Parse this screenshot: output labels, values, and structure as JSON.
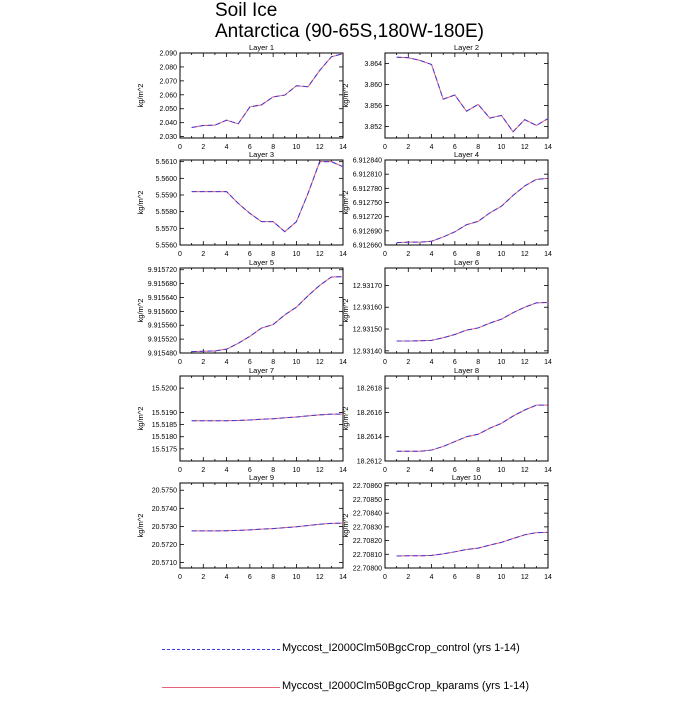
{
  "title": "Soil Ice",
  "subtitle": "Antarctica (90-65S,180W-180E)",
  "legend": [
    {
      "label": "Myccost_I2000Clm50BgcCrop_control (yrs 1-14)",
      "color": "#3a3ad9",
      "style": "dashed"
    },
    {
      "label": "Myccost_I2000Clm50BgcCrop_kparams (yrs 1-14)",
      "color": "#e8607a",
      "style": "solid"
    }
  ],
  "chart_data": [
    {
      "type": "line",
      "title": "Layer 1",
      "ylabel": "kg/m^2",
      "xlim": [
        0,
        14
      ],
      "ylim": [
        2.029,
        2.09
      ],
      "xticks": [
        "0",
        "2",
        "4",
        "6",
        "8",
        "10",
        "12",
        "14"
      ],
      "yticks": [
        "2.030",
        "2.040",
        "2.050",
        "2.060",
        "2.070",
        "2.080",
        "2.090"
      ],
      "x": [
        1,
        2,
        3,
        4,
        5,
        6,
        7,
        8,
        9,
        10,
        11,
        12,
        13,
        14
      ],
      "series": [
        {
          "name": "Myccost_I2000Clm50BgcCrop_control (yrs 1-14)",
          "values": [
            2.0365,
            2.038,
            2.0382,
            2.0418,
            2.0392,
            2.0513,
            2.0528,
            2.0585,
            2.0598,
            2.0665,
            2.0658,
            2.0775,
            2.0873,
            2.0895
          ]
        },
        {
          "name": "Myccost_I2000Clm50BgcCrop_kparams (yrs 1-14)",
          "values": [
            2.0365,
            2.038,
            2.0382,
            2.0418,
            2.0392,
            2.0513,
            2.0528,
            2.0585,
            2.0598,
            2.0665,
            2.0658,
            2.0775,
            2.0873,
            2.0895
          ]
        }
      ]
    },
    {
      "type": "line",
      "title": "Layer 2",
      "ylabel": "kg/m^2",
      "xlim": [
        0,
        14
      ],
      "ylim": [
        3.8498,
        3.866
      ],
      "xticks": [
        "0",
        "2",
        "4",
        "6",
        "8",
        "10",
        "12",
        "14"
      ],
      "yticks": [
        "3.852",
        "3.856",
        "3.860",
        "3.864"
      ],
      "x": [
        1,
        2,
        3,
        4,
        5,
        6,
        7,
        8,
        9,
        10,
        11,
        12,
        13,
        14
      ],
      "series": [
        {
          "name": "Myccost_I2000Clm50BgcCrop_control (yrs 1-14)",
          "values": [
            3.8652,
            3.8651,
            3.8646,
            3.8638,
            3.8572,
            3.858,
            3.8549,
            3.8562,
            3.8536,
            3.8541,
            3.851,
            3.8533,
            3.8522,
            3.8535
          ]
        },
        {
          "name": "Myccost_I2000Clm50BgcCrop_kparams (yrs 1-14)",
          "values": [
            3.8652,
            3.8651,
            3.8646,
            3.8638,
            3.8572,
            3.858,
            3.8549,
            3.8562,
            3.8536,
            3.8541,
            3.851,
            3.8533,
            3.8522,
            3.8535
          ]
        }
      ]
    },
    {
      "type": "line",
      "title": "Layer 3",
      "ylabel": "kg/m^2",
      "xlim": [
        0,
        14
      ],
      "ylim": [
        5.556,
        5.5611
      ],
      "xticks": [
        "0",
        "2",
        "4",
        "6",
        "8",
        "10",
        "12",
        "14"
      ],
      "yticks": [
        "5.5560",
        "5.5570",
        "5.5580",
        "5.5590",
        "5.5600",
        "5.5610"
      ],
      "x": [
        1,
        2,
        3,
        4,
        5,
        6,
        7,
        8,
        9,
        10,
        11,
        12,
        13,
        14
      ],
      "series": [
        {
          "name": "Myccost_I2000Clm50BgcCrop_control (yrs 1-14)",
          "values": [
            5.5592,
            5.5592,
            5.5592,
            5.5592,
            5.5585,
            5.5579,
            5.5574,
            5.5574,
            5.5568,
            5.5574,
            5.5591,
            5.561,
            5.561,
            5.5607
          ]
        },
        {
          "name": "Myccost_I2000Clm50BgcCrop_kparams (yrs 1-14)",
          "values": [
            5.5592,
            5.5592,
            5.5592,
            5.5592,
            5.5585,
            5.5579,
            5.5574,
            5.5574,
            5.5568,
            5.5574,
            5.5591,
            5.561,
            5.561,
            5.5607
          ]
        }
      ]
    },
    {
      "type": "line",
      "title": "Layer 4",
      "ylabel": "kg/m^2",
      "xlim": [
        0,
        14
      ],
      "ylim": [
        6.91266,
        6.91284
      ],
      "xticks": [
        "0",
        "2",
        "4",
        "6",
        "8",
        "10",
        "12",
        "14"
      ],
      "yticks": [
        "6.912660",
        "6.912690",
        "6.912720",
        "6.912750",
        "6.912780",
        "6.912810",
        "6.912840"
      ],
      "x": [
        1,
        2,
        3,
        4,
        5,
        6,
        7,
        8,
        9,
        10,
        11,
        12,
        13,
        14
      ],
      "series": [
        {
          "name": "Myccost_I2000Clm50BgcCrop_control (yrs 1-14)",
          "values": [
            6.912665,
            6.912666,
            6.912666,
            6.912668,
            6.912677,
            6.912688,
            6.912703,
            6.91271,
            6.912728,
            6.912742,
            6.912765,
            6.912785,
            6.912799,
            6.912801
          ]
        },
        {
          "name": "Myccost_I2000Clm50BgcCrop_kparams (yrs 1-14)",
          "values": [
            6.912665,
            6.912666,
            6.912666,
            6.912668,
            6.912677,
            6.912688,
            6.912703,
            6.91271,
            6.912728,
            6.912742,
            6.912765,
            6.912785,
            6.912799,
            6.912801
          ]
        }
      ]
    },
    {
      "type": "line",
      "title": "Layer 5",
      "ylabel": "kg/m^2",
      "xlim": [
        0,
        14
      ],
      "ylim": [
        9.91548,
        9.915725
      ],
      "xticks": [
        "0",
        "2",
        "4",
        "6",
        "8",
        "10",
        "12",
        "14"
      ],
      "yticks": [
        "9.915480",
        "9.915520",
        "9.915560",
        "9.915600",
        "9.915640",
        "9.915680",
        "9.915720"
      ],
      "x": [
        1,
        2,
        3,
        4,
        5,
        6,
        7,
        8,
        9,
        10,
        11,
        12,
        13,
        14
      ],
      "series": [
        {
          "name": "Myccost_I2000Clm50BgcCrop_control (yrs 1-14)",
          "values": [
            9.915484,
            9.915485,
            9.915486,
            9.915491,
            9.915508,
            9.915528,
            9.915552,
            9.915562,
            9.91559,
            9.915612,
            9.915645,
            9.915675,
            9.915699,
            9.9157
          ]
        },
        {
          "name": "Myccost_I2000Clm50BgcCrop_kparams (yrs 1-14)",
          "values": [
            9.915484,
            9.915485,
            9.915486,
            9.915491,
            9.915508,
            9.915528,
            9.915552,
            9.915562,
            9.91559,
            9.915612,
            9.915645,
            9.915675,
            9.915699,
            9.9157
          ]
        }
      ]
    },
    {
      "type": "line",
      "title": "Layer 6",
      "ylabel": "kg/m^2",
      "xlim": [
        0,
        14
      ],
      "ylim": [
        12.93139,
        12.93178
      ],
      "xticks": [
        "0",
        "2",
        "4",
        "6",
        "8",
        "10",
        "12",
        "14"
      ],
      "yticks": [
        "12.93140",
        "12.93150",
        "12.93160",
        "12.93170"
      ],
      "x": [
        1,
        2,
        3,
        4,
        5,
        6,
        7,
        8,
        9,
        10,
        11,
        12,
        13,
        14
      ],
      "series": [
        {
          "name": "Myccost_I2000Clm50BgcCrop_control (yrs 1-14)",
          "values": [
            12.931445,
            12.931445,
            12.931446,
            12.931448,
            12.93146,
            12.931475,
            12.931495,
            12.931505,
            12.931527,
            12.931545,
            12.931575,
            12.9316,
            12.93162,
            12.931622
          ]
        },
        {
          "name": "Myccost_I2000Clm50BgcCrop_kparams (yrs 1-14)",
          "values": [
            12.931445,
            12.931445,
            12.931446,
            12.931448,
            12.93146,
            12.931475,
            12.931495,
            12.931505,
            12.931527,
            12.931545,
            12.931575,
            12.9316,
            12.93162,
            12.931622
          ]
        }
      ]
    },
    {
      "type": "line",
      "title": "Layer 7",
      "ylabel": "kg/m^2",
      "xlim": [
        0,
        14
      ],
      "ylim": [
        15.517,
        15.5205
      ],
      "xticks": [
        "0",
        "2",
        "4",
        "6",
        "8",
        "10",
        "12",
        "14"
      ],
      "yticks": [
        "15.5175",
        "15.5180",
        "15.5185",
        "15.5190",
        "15.5200"
      ],
      "x": [
        1,
        2,
        3,
        4,
        5,
        6,
        7,
        8,
        9,
        10,
        11,
        12,
        13,
        14
      ],
      "series": [
        {
          "name": "Myccost_I2000Clm50BgcCrop_control (yrs 1-14)",
          "values": [
            15.51866,
            15.51866,
            15.51866,
            15.51866,
            15.51867,
            15.51869,
            15.51872,
            15.51874,
            15.51878,
            15.51881,
            15.51886,
            15.5189,
            15.51893,
            15.51893
          ]
        },
        {
          "name": "Myccost_I2000Clm50BgcCrop_kparams (yrs 1-14)",
          "values": [
            15.51866,
            15.51866,
            15.51866,
            15.51866,
            15.51867,
            15.51869,
            15.51872,
            15.51874,
            15.51878,
            15.51881,
            15.51886,
            15.5189,
            15.51893,
            15.51893
          ]
        }
      ]
    },
    {
      "type": "line",
      "title": "Layer 8",
      "ylabel": "kg/m^2",
      "xlim": [
        0,
        14
      ],
      "ylim": [
        18.2612,
        18.2619
      ],
      "xticks": [
        "0",
        "2",
        "4",
        "6",
        "8",
        "10",
        "12",
        "14"
      ],
      "yticks": [
        "18.2612",
        "18.2614",
        "18.2616",
        "18.2618"
      ],
      "x": [
        1,
        2,
        3,
        4,
        5,
        6,
        7,
        8,
        9,
        10,
        11,
        12,
        13,
        14
      ],
      "series": [
        {
          "name": "Myccost_I2000Clm50BgcCrop_control (yrs 1-14)",
          "values": [
            18.26128,
            18.26128,
            18.26128,
            18.26129,
            18.26132,
            18.26136,
            18.2614,
            18.26142,
            18.26147,
            18.26151,
            18.26157,
            18.26162,
            18.26166,
            18.26166
          ]
        },
        {
          "name": "Myccost_I2000Clm50BgcCrop_kparams (yrs 1-14)",
          "values": [
            18.26128,
            18.26128,
            18.26128,
            18.26129,
            18.26132,
            18.26136,
            18.2614,
            18.26142,
            18.26147,
            18.26151,
            18.26157,
            18.26162,
            18.26166,
            18.26166
          ]
        }
      ]
    },
    {
      "type": "line",
      "title": "Layer 9",
      "ylabel": "kg/m^2",
      "xlim": [
        0,
        14
      ],
      "ylim": [
        20.5707,
        20.5754
      ],
      "xticks": [
        "0",
        "2",
        "4",
        "6",
        "8",
        "10",
        "12",
        "14"
      ],
      "yticks": [
        "20.5710",
        "20.5720",
        "20.5730",
        "20.5740",
        "20.5750"
      ],
      "x": [
        1,
        2,
        3,
        4,
        5,
        6,
        7,
        8,
        9,
        10,
        11,
        12,
        13,
        14
      ],
      "series": [
        {
          "name": "Myccost_I2000Clm50BgcCrop_control (yrs 1-14)",
          "values": [
            20.57275,
            20.57275,
            20.57275,
            20.57276,
            20.57278,
            20.57281,
            20.57285,
            20.57288,
            20.57293,
            20.57298,
            20.57305,
            20.57312,
            20.57317,
            20.57318
          ]
        },
        {
          "name": "Myccost_I2000Clm50BgcCrop_kparams (yrs 1-14)",
          "values": [
            20.57275,
            20.57275,
            20.57275,
            20.57276,
            20.57278,
            20.57281,
            20.57285,
            20.57288,
            20.57293,
            20.57298,
            20.57305,
            20.57312,
            20.57317,
            20.57318
          ]
        }
      ]
    },
    {
      "type": "line",
      "title": "Layer 10",
      "ylabel": "kg/m^2",
      "xlim": [
        0,
        14
      ],
      "ylim": [
        22.708,
        22.70862
      ],
      "xticks": [
        "0",
        "2",
        "4",
        "6",
        "8",
        "10",
        "12",
        "14"
      ],
      "yticks": [
        "22.70800",
        "22.70810",
        "22.70820",
        "22.70830",
        "22.70840",
        "22.70850",
        "22.70860"
      ],
      "x": [
        1,
        2,
        3,
        4,
        5,
        6,
        7,
        8,
        9,
        10,
        11,
        12,
        13,
        14
      ],
      "series": [
        {
          "name": "Myccost_I2000Clm50BgcCrop_control (yrs 1-14)",
          "values": [
            22.708088,
            22.708089,
            22.708089,
            22.708092,
            22.708103,
            22.708118,
            22.708135,
            22.708145,
            22.708167,
            22.708187,
            22.708215,
            22.708242,
            22.708258,
            22.70826
          ]
        },
        {
          "name": "Myccost_I2000Clm50BgcCrop_kparams (yrs 1-14)",
          "values": [
            22.708088,
            22.708089,
            22.708089,
            22.708092,
            22.708103,
            22.708118,
            22.708135,
            22.708145,
            22.708167,
            22.708187,
            22.708215,
            22.708242,
            22.708258,
            22.70826
          ]
        }
      ]
    }
  ]
}
